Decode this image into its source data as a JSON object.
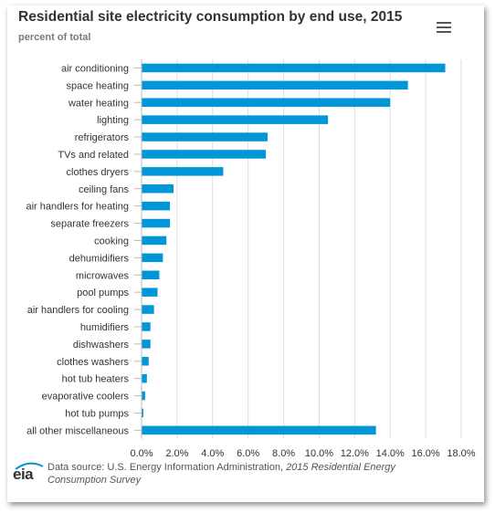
{
  "title": "Residential site electricity consumption by end use, 2015",
  "subtitle": "percent of total",
  "menu_icon": "hamburger-menu-icon",
  "source": {
    "prefix": "Data source: U.S. Energy Information Administration, ",
    "italic": "2015 Residential Energy Consumption Survey"
  },
  "logo_text": "eia",
  "colors": {
    "bar": "#0096d7",
    "grid": "#dcdcdc",
    "text": "#333333"
  },
  "chart_data": {
    "type": "bar",
    "orientation": "horizontal",
    "categories": [
      "air conditioning",
      "space heating",
      "water heating",
      "lighting",
      "refrigerators",
      "TVs and related",
      "clothes dryers",
      "ceiling fans",
      "air handlers for heating",
      "separate freezers",
      "cooking",
      "dehumidifiers",
      "microwaves",
      "pool pumps",
      "air handlers for cooling",
      "humidifiers",
      "dishwashers",
      "clothes washers",
      "hot tub heaters",
      "evaporative coolers",
      "hot tub pumps",
      "all other miscellaneous"
    ],
    "values": [
      17.1,
      15.0,
      14.0,
      10.5,
      7.1,
      7.0,
      4.6,
      1.8,
      1.6,
      1.6,
      1.4,
      1.2,
      1.0,
      0.9,
      0.7,
      0.5,
      0.5,
      0.4,
      0.3,
      0.2,
      0.1,
      13.2
    ],
    "xlim": [
      0,
      18
    ],
    "xticks": [
      "0.0%",
      "2.0%",
      "4.0%",
      "6.0%",
      "8.0%",
      "10.0%",
      "12.0%",
      "14.0%",
      "16.0%",
      "18.0%"
    ],
    "xlabel": "",
    "ylabel": "",
    "grid": true,
    "legend": "none"
  }
}
